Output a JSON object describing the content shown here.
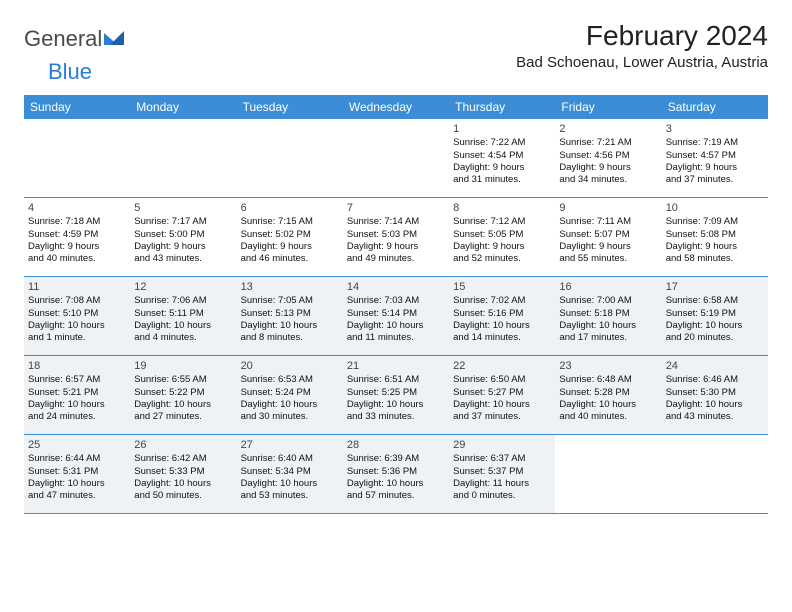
{
  "brand": {
    "part1": "General",
    "part2": "Blue"
  },
  "title": "February 2024",
  "location": "Bad Schoenau, Lower Austria, Austria",
  "colors": {
    "header_bg": "#3b8ed6",
    "header_text": "#ffffff",
    "shaded_bg": "#eef2f5",
    "border": "#3b8ed6",
    "brand_gray": "#4a4a4a",
    "brand_blue": "#2b7cd3"
  },
  "dayNames": [
    "Sunday",
    "Monday",
    "Tuesday",
    "Wednesday",
    "Thursday",
    "Friday",
    "Saturday"
  ],
  "weeks": [
    [
      {
        "empty": true
      },
      {
        "empty": true
      },
      {
        "empty": true
      },
      {
        "empty": true
      },
      {
        "num": "1",
        "sunrise": "Sunrise: 7:22 AM",
        "sunset": "Sunset: 4:54 PM",
        "day1": "Daylight: 9 hours",
        "day2": "and 31 minutes."
      },
      {
        "num": "2",
        "sunrise": "Sunrise: 7:21 AM",
        "sunset": "Sunset: 4:56 PM",
        "day1": "Daylight: 9 hours",
        "day2": "and 34 minutes."
      },
      {
        "num": "3",
        "sunrise": "Sunrise: 7:19 AM",
        "sunset": "Sunset: 4:57 PM",
        "day1": "Daylight: 9 hours",
        "day2": "and 37 minutes."
      }
    ],
    [
      {
        "num": "4",
        "sunrise": "Sunrise: 7:18 AM",
        "sunset": "Sunset: 4:59 PM",
        "day1": "Daylight: 9 hours",
        "day2": "and 40 minutes."
      },
      {
        "num": "5",
        "sunrise": "Sunrise: 7:17 AM",
        "sunset": "Sunset: 5:00 PM",
        "day1": "Daylight: 9 hours",
        "day2": "and 43 minutes."
      },
      {
        "num": "6",
        "sunrise": "Sunrise: 7:15 AM",
        "sunset": "Sunset: 5:02 PM",
        "day1": "Daylight: 9 hours",
        "day2": "and 46 minutes."
      },
      {
        "num": "7",
        "sunrise": "Sunrise: 7:14 AM",
        "sunset": "Sunset: 5:03 PM",
        "day1": "Daylight: 9 hours",
        "day2": "and 49 minutes."
      },
      {
        "num": "8",
        "sunrise": "Sunrise: 7:12 AM",
        "sunset": "Sunset: 5:05 PM",
        "day1": "Daylight: 9 hours",
        "day2": "and 52 minutes."
      },
      {
        "num": "9",
        "sunrise": "Sunrise: 7:11 AM",
        "sunset": "Sunset: 5:07 PM",
        "day1": "Daylight: 9 hours",
        "day2": "and 55 minutes."
      },
      {
        "num": "10",
        "sunrise": "Sunrise: 7:09 AM",
        "sunset": "Sunset: 5:08 PM",
        "day1": "Daylight: 9 hours",
        "day2": "and 58 minutes."
      }
    ],
    [
      {
        "num": "11",
        "shaded": true,
        "sunrise": "Sunrise: 7:08 AM",
        "sunset": "Sunset: 5:10 PM",
        "day1": "Daylight: 10 hours",
        "day2": "and 1 minute."
      },
      {
        "num": "12",
        "shaded": true,
        "sunrise": "Sunrise: 7:06 AM",
        "sunset": "Sunset: 5:11 PM",
        "day1": "Daylight: 10 hours",
        "day2": "and 4 minutes."
      },
      {
        "num": "13",
        "shaded": true,
        "sunrise": "Sunrise: 7:05 AM",
        "sunset": "Sunset: 5:13 PM",
        "day1": "Daylight: 10 hours",
        "day2": "and 8 minutes."
      },
      {
        "num": "14",
        "shaded": true,
        "sunrise": "Sunrise: 7:03 AM",
        "sunset": "Sunset: 5:14 PM",
        "day1": "Daylight: 10 hours",
        "day2": "and 11 minutes."
      },
      {
        "num": "15",
        "shaded": true,
        "sunrise": "Sunrise: 7:02 AM",
        "sunset": "Sunset: 5:16 PM",
        "day1": "Daylight: 10 hours",
        "day2": "and 14 minutes."
      },
      {
        "num": "16",
        "shaded": true,
        "sunrise": "Sunrise: 7:00 AM",
        "sunset": "Sunset: 5:18 PM",
        "day1": "Daylight: 10 hours",
        "day2": "and 17 minutes."
      },
      {
        "num": "17",
        "shaded": true,
        "sunrise": "Sunrise: 6:58 AM",
        "sunset": "Sunset: 5:19 PM",
        "day1": "Daylight: 10 hours",
        "day2": "and 20 minutes."
      }
    ],
    [
      {
        "num": "18",
        "shaded": true,
        "sunrise": "Sunrise: 6:57 AM",
        "sunset": "Sunset: 5:21 PM",
        "day1": "Daylight: 10 hours",
        "day2": "and 24 minutes."
      },
      {
        "num": "19",
        "shaded": true,
        "sunrise": "Sunrise: 6:55 AM",
        "sunset": "Sunset: 5:22 PM",
        "day1": "Daylight: 10 hours",
        "day2": "and 27 minutes."
      },
      {
        "num": "20",
        "shaded": true,
        "sunrise": "Sunrise: 6:53 AM",
        "sunset": "Sunset: 5:24 PM",
        "day1": "Daylight: 10 hours",
        "day2": "and 30 minutes."
      },
      {
        "num": "21",
        "shaded": true,
        "sunrise": "Sunrise: 6:51 AM",
        "sunset": "Sunset: 5:25 PM",
        "day1": "Daylight: 10 hours",
        "day2": "and 33 minutes."
      },
      {
        "num": "22",
        "shaded": true,
        "sunrise": "Sunrise: 6:50 AM",
        "sunset": "Sunset: 5:27 PM",
        "day1": "Daylight: 10 hours",
        "day2": "and 37 minutes."
      },
      {
        "num": "23",
        "shaded": true,
        "sunrise": "Sunrise: 6:48 AM",
        "sunset": "Sunset: 5:28 PM",
        "day1": "Daylight: 10 hours",
        "day2": "and 40 minutes."
      },
      {
        "num": "24",
        "shaded": true,
        "sunrise": "Sunrise: 6:46 AM",
        "sunset": "Sunset: 5:30 PM",
        "day1": "Daylight: 10 hours",
        "day2": "and 43 minutes."
      }
    ],
    [
      {
        "num": "25",
        "shaded": true,
        "sunrise": "Sunrise: 6:44 AM",
        "sunset": "Sunset: 5:31 PM",
        "day1": "Daylight: 10 hours",
        "day2": "and 47 minutes."
      },
      {
        "num": "26",
        "shaded": true,
        "sunrise": "Sunrise: 6:42 AM",
        "sunset": "Sunset: 5:33 PM",
        "day1": "Daylight: 10 hours",
        "day2": "and 50 minutes."
      },
      {
        "num": "27",
        "shaded": true,
        "sunrise": "Sunrise: 6:40 AM",
        "sunset": "Sunset: 5:34 PM",
        "day1": "Daylight: 10 hours",
        "day2": "and 53 minutes."
      },
      {
        "num": "28",
        "shaded": true,
        "sunrise": "Sunrise: 6:39 AM",
        "sunset": "Sunset: 5:36 PM",
        "day1": "Daylight: 10 hours",
        "day2": "and 57 minutes."
      },
      {
        "num": "29",
        "shaded": true,
        "sunrise": "Sunrise: 6:37 AM",
        "sunset": "Sunset: 5:37 PM",
        "day1": "Daylight: 11 hours",
        "day2": "and 0 minutes."
      },
      {
        "empty": true
      },
      {
        "empty": true
      }
    ]
  ]
}
